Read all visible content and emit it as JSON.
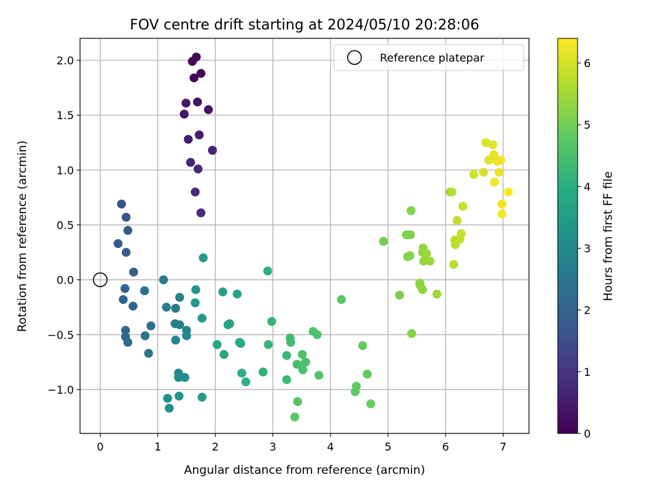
{
  "chart_data": {
    "type": "scatter",
    "title": "FOV centre drift starting at 2024/05/10 20:28:06",
    "xlabel": "Angular distance from reference (arcmin)",
    "ylabel": "Rotation from reference (arcmin)",
    "xlim": [
      -0.35,
      7.45
    ],
    "ylim": [
      -1.4,
      2.2
    ],
    "x_ticks": [
      0,
      1,
      2,
      3,
      4,
      5,
      6,
      7
    ],
    "x_tick_labels": [
      "0",
      "1",
      "2",
      "3",
      "4",
      "5",
      "6",
      "7"
    ],
    "y_ticks": [
      -1.0,
      -0.5,
      0.0,
      0.5,
      1.0,
      1.5,
      2.0
    ],
    "y_tick_labels": [
      "−1.0",
      "−0.5",
      "0.0",
      "0.5",
      "1.0",
      "1.5",
      "2.0"
    ],
    "grid": true,
    "legend": {
      "position": "top-right",
      "entries": [
        {
          "label": "Reference platepar",
          "marker": "open-circle"
        }
      ]
    },
    "reference_point": {
      "x": 0,
      "y": 0
    },
    "colorbar": {
      "label": "Hours from first FF file",
      "colormap": "viridis",
      "range": [
        0,
        6.4
      ],
      "ticks": [
        0,
        1,
        2,
        3,
        4,
        5,
        6
      ],
      "tick_labels": [
        "0",
        "1",
        "2",
        "3",
        "4",
        "5",
        "6"
      ]
    },
    "points": [
      {
        "x": 1.63,
        "y": 1.84,
        "c": 0.05
      },
      {
        "x": 1.75,
        "y": 1.88,
        "c": 0.1
      },
      {
        "x": 1.6,
        "y": 1.99,
        "c": 0.15
      },
      {
        "x": 1.67,
        "y": 2.03,
        "c": 0.2
      },
      {
        "x": 1.88,
        "y": 1.55,
        "c": 0.3
      },
      {
        "x": 1.69,
        "y": 1.62,
        "c": 0.35
      },
      {
        "x": 1.49,
        "y": 1.61,
        "c": 0.4
      },
      {
        "x": 1.46,
        "y": 1.51,
        "c": 0.45
      },
      {
        "x": 1.72,
        "y": 1.32,
        "c": 0.5
      },
      {
        "x": 1.53,
        "y": 1.28,
        "c": 0.55
      },
      {
        "x": 1.95,
        "y": 1.18,
        "c": 0.6
      },
      {
        "x": 1.57,
        "y": 1.07,
        "c": 0.65
      },
      {
        "x": 1.7,
        "y": 1.01,
        "c": 0.7
      },
      {
        "x": 1.65,
        "y": 0.8,
        "c": 0.75
      },
      {
        "x": 1.75,
        "y": 0.61,
        "c": 0.8
      },
      {
        "x": 0.37,
        "y": 0.69,
        "c": 1.7
      },
      {
        "x": 0.45,
        "y": 0.57,
        "c": 1.75
      },
      {
        "x": 0.48,
        "y": 0.45,
        "c": 1.8
      },
      {
        "x": 0.31,
        "y": 0.33,
        "c": 1.85
      },
      {
        "x": 0.45,
        "y": 0.25,
        "c": 1.9
      },
      {
        "x": 0.58,
        "y": 0.07,
        "c": 1.95
      },
      {
        "x": 0.43,
        "y": -0.08,
        "c": 2.0
      },
      {
        "x": 0.4,
        "y": -0.18,
        "c": 2.05
      },
      {
        "x": 0.57,
        "y": -0.24,
        "c": 2.1
      },
      {
        "x": 0.44,
        "y": -0.46,
        "c": 2.15
      },
      {
        "x": 0.44,
        "y": -0.52,
        "c": 2.2
      },
      {
        "x": 0.48,
        "y": -0.57,
        "c": 2.25
      },
      {
        "x": 0.77,
        "y": -0.1,
        "c": 2.3
      },
      {
        "x": 0.88,
        "y": -0.42,
        "c": 2.35
      },
      {
        "x": 0.78,
        "y": -0.51,
        "c": 2.4
      },
      {
        "x": 0.84,
        "y": -0.67,
        "c": 2.45
      },
      {
        "x": 1.1,
        "y": 0.0,
        "c": 2.55
      },
      {
        "x": 1.15,
        "y": -0.25,
        "c": 2.6
      },
      {
        "x": 1.31,
        "y": -0.26,
        "c": 2.65
      },
      {
        "x": 1.38,
        "y": -0.16,
        "c": 2.7
      },
      {
        "x": 1.3,
        "y": -0.4,
        "c": 2.75
      },
      {
        "x": 1.38,
        "y": -0.41,
        "c": 2.8
      },
      {
        "x": 1.5,
        "y": -0.46,
        "c": 2.85
      },
      {
        "x": 1.5,
        "y": -0.51,
        "c": 2.9
      },
      {
        "x": 1.31,
        "y": -0.55,
        "c": 2.95
      },
      {
        "x": 1.36,
        "y": -0.85,
        "c": 3.0
      },
      {
        "x": 1.36,
        "y": -0.89,
        "c": 3.05
      },
      {
        "x": 1.47,
        "y": -0.89,
        "c": 3.1
      },
      {
        "x": 1.17,
        "y": -1.08,
        "c": 3.15
      },
      {
        "x": 1.2,
        "y": -1.17,
        "c": 3.2
      },
      {
        "x": 1.37,
        "y": -1.06,
        "c": 3.25
      },
      {
        "x": 1.66,
        "y": -0.09,
        "c": 3.3
      },
      {
        "x": 1.65,
        "y": -0.21,
        "c": 3.35
      },
      {
        "x": 1.77,
        "y": -0.35,
        "c": 3.4
      },
      {
        "x": 1.79,
        "y": 0.2,
        "c": 3.45
      },
      {
        "x": 1.77,
        "y": -1.07,
        "c": 3.5
      },
      {
        "x": 2.13,
        "y": -0.11,
        "c": 3.6
      },
      {
        "x": 2.22,
        "y": -0.41,
        "c": 3.65
      },
      {
        "x": 2.25,
        "y": -0.4,
        "c": 3.7
      },
      {
        "x": 2.38,
        "y": -0.13,
        "c": 3.75
      },
      {
        "x": 2.03,
        "y": -0.59,
        "c": 3.8
      },
      {
        "x": 2.15,
        "y": -0.68,
        "c": 3.85
      },
      {
        "x": 2.42,
        "y": -0.57,
        "c": 3.9
      },
      {
        "x": 2.44,
        "y": -0.58,
        "c": 3.95
      },
      {
        "x": 2.46,
        "y": -0.85,
        "c": 4.0
      },
      {
        "x": 2.53,
        "y": -0.93,
        "c": 4.05
      },
      {
        "x": 2.83,
        "y": -0.84,
        "c": 4.1
      },
      {
        "x": 2.91,
        "y": 0.08,
        "c": 4.05
      },
      {
        "x": 2.92,
        "y": -0.59,
        "c": 4.15
      },
      {
        "x": 2.98,
        "y": -0.38,
        "c": 4.2
      },
      {
        "x": 3.24,
        "y": -0.69,
        "c": 4.25
      },
      {
        "x": 3.24,
        "y": -0.91,
        "c": 4.3
      },
      {
        "x": 3.3,
        "y": -0.53,
        "c": 4.35
      },
      {
        "x": 3.31,
        "y": -0.57,
        "c": 4.4
      },
      {
        "x": 3.42,
        "y": -0.77,
        "c": 4.45
      },
      {
        "x": 3.5,
        "y": -0.78,
        "c": 4.5
      },
      {
        "x": 3.52,
        "y": -0.82,
        "c": 4.5
      },
      {
        "x": 3.51,
        "y": -0.68,
        "c": 4.55
      },
      {
        "x": 3.57,
        "y": -0.75,
        "c": 4.55
      },
      {
        "x": 3.7,
        "y": -0.47,
        "c": 4.6
      },
      {
        "x": 3.77,
        "y": -0.5,
        "c": 4.6
      },
      {
        "x": 3.8,
        "y": -0.87,
        "c": 4.65
      },
      {
        "x": 3.43,
        "y": -1.11,
        "c": 4.65
      },
      {
        "x": 3.38,
        "y": -1.25,
        "c": 4.7
      },
      {
        "x": 4.19,
        "y": -0.18,
        "c": 4.75
      },
      {
        "x": 4.45,
        "y": -0.97,
        "c": 4.8
      },
      {
        "x": 4.43,
        "y": -1.02,
        "c": 4.8
      },
      {
        "x": 4.56,
        "y": -0.6,
        "c": 4.85
      },
      {
        "x": 4.64,
        "y": -0.86,
        "c": 4.85
      },
      {
        "x": 4.7,
        "y": -1.13,
        "c": 4.9
      },
      {
        "x": 4.92,
        "y": 0.35,
        "c": 5.0
      },
      {
        "x": 5.2,
        "y": -0.14,
        "c": 5.05
      },
      {
        "x": 5.32,
        "y": 0.41,
        "c": 5.1
      },
      {
        "x": 5.39,
        "y": 0.41,
        "c": 5.1
      },
      {
        "x": 5.4,
        "y": 0.63,
        "c": 5.15
      },
      {
        "x": 5.34,
        "y": 0.21,
        "c": 5.15
      },
      {
        "x": 5.38,
        "y": 0.22,
        "c": 5.2
      },
      {
        "x": 5.41,
        "y": -0.49,
        "c": 5.2
      },
      {
        "x": 5.55,
        "y": -0.03,
        "c": 5.25
      },
      {
        "x": 5.56,
        "y": -0.05,
        "c": 5.25
      },
      {
        "x": 5.6,
        "y": -0.09,
        "c": 5.3
      },
      {
        "x": 5.6,
        "y": 0.25,
        "c": 5.3
      },
      {
        "x": 5.61,
        "y": 0.29,
        "c": 5.35
      },
      {
        "x": 5.62,
        "y": 0.17,
        "c": 5.35
      },
      {
        "x": 5.67,
        "y": 0.24,
        "c": 5.4
      },
      {
        "x": 5.73,
        "y": 0.17,
        "c": 5.4
      },
      {
        "x": 5.85,
        "y": -0.13,
        "c": 5.45
      },
      {
        "x": 6.08,
        "y": 0.8,
        "c": 5.6
      },
      {
        "x": 6.11,
        "y": 0.8,
        "c": 5.65
      },
      {
        "x": 6.14,
        "y": 0.14,
        "c": 5.7
      },
      {
        "x": 6.16,
        "y": 0.36,
        "c": 5.75
      },
      {
        "x": 6.17,
        "y": 0.32,
        "c": 5.75
      },
      {
        "x": 6.2,
        "y": 0.54,
        "c": 5.8
      },
      {
        "x": 6.25,
        "y": 0.37,
        "c": 5.8
      },
      {
        "x": 6.27,
        "y": 0.42,
        "c": 5.85
      },
      {
        "x": 6.3,
        "y": 0.67,
        "c": 5.85
      },
      {
        "x": 6.49,
        "y": 0.96,
        "c": 5.95
      },
      {
        "x": 6.66,
        "y": 0.98,
        "c": 6.0
      },
      {
        "x": 6.7,
        "y": 1.25,
        "c": 6.05
      },
      {
        "x": 6.75,
        "y": 1.09,
        "c": 6.1
      },
      {
        "x": 6.82,
        "y": 1.23,
        "c": 6.1
      },
      {
        "x": 6.84,
        "y": 1.14,
        "c": 6.15
      },
      {
        "x": 6.86,
        "y": 1.1,
        "c": 6.15
      },
      {
        "x": 6.9,
        "y": 1.08,
        "c": 6.2
      },
      {
        "x": 6.93,
        "y": 0.98,
        "c": 6.2
      },
      {
        "x": 6.96,
        "y": 1.09,
        "c": 6.25
      },
      {
        "x": 6.85,
        "y": 0.89,
        "c": 6.25
      },
      {
        "x": 6.98,
        "y": 0.69,
        "c": 6.3
      },
      {
        "x": 6.98,
        "y": 0.6,
        "c": 6.3
      },
      {
        "x": 7.09,
        "y": 0.8,
        "c": 6.35
      }
    ]
  }
}
